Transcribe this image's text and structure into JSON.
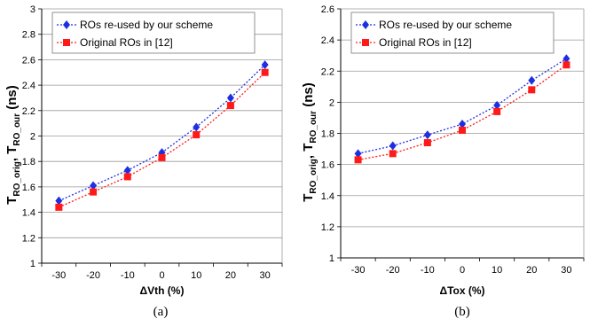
{
  "chart_data": [
    {
      "type": "line",
      "panel_caption": "(a)",
      "xlabel": "ΔVth (%)",
      "ylabel_main": "T",
      "ylabel_sub1": "RO_orig",
      "ylabel_mid": ", T",
      "ylabel_sub2": "RO_our",
      "ylabel_unit": " (ns)",
      "categories": [
        "-30",
        "-20",
        "-10",
        "0",
        "10",
        "20",
        "30"
      ],
      "ylim": [
        1,
        3
      ],
      "yticks": [
        "1",
        "1.2",
        "1.4",
        "1.6",
        "1.8",
        "2",
        "2.2",
        "2.4",
        "2.6",
        "2.8",
        "3"
      ],
      "grid": "horizontal",
      "legend_position": "top-left",
      "series": [
        {
          "name": "ROs re-used  by our scheme",
          "color": "#1f2fe0",
          "marker": "diamond",
          "values": [
            1.49,
            1.61,
            1.73,
            1.87,
            2.07,
            2.3,
            2.56
          ]
        },
        {
          "name": "Original ROs in [12]",
          "color": "#ff1a1a",
          "marker": "square",
          "values": [
            1.44,
            1.56,
            1.68,
            1.83,
            2.01,
            2.24,
            2.5
          ]
        }
      ]
    },
    {
      "type": "line",
      "panel_caption": "(b)",
      "xlabel": "ΔTox (%)",
      "ylabel_main": "T",
      "ylabel_sub1": "RO_orig",
      "ylabel_mid": ", T",
      "ylabel_sub2": "RO_our",
      "ylabel_unit": " (ns)",
      "categories": [
        "-30",
        "-20",
        "-10",
        "0",
        "10",
        "20",
        "30"
      ],
      "ylim": [
        1,
        2.6
      ],
      "yticks": [
        "1",
        "1.2",
        "1.4",
        "1.6",
        "1.8",
        "2",
        "2.2",
        "2.4",
        "2.6"
      ],
      "grid": "horizontal",
      "legend_position": "top-left",
      "series": [
        {
          "name": "ROs re-used  by our scheme",
          "color": "#1f2fe0",
          "marker": "diamond",
          "values": [
            1.67,
            1.72,
            1.79,
            1.86,
            1.98,
            2.14,
            2.28
          ]
        },
        {
          "name": "Original ROs in [12]",
          "color": "#ff1a1a",
          "marker": "square",
          "values": [
            1.63,
            1.67,
            1.74,
            1.82,
            1.94,
            2.08,
            2.24
          ]
        }
      ]
    }
  ]
}
